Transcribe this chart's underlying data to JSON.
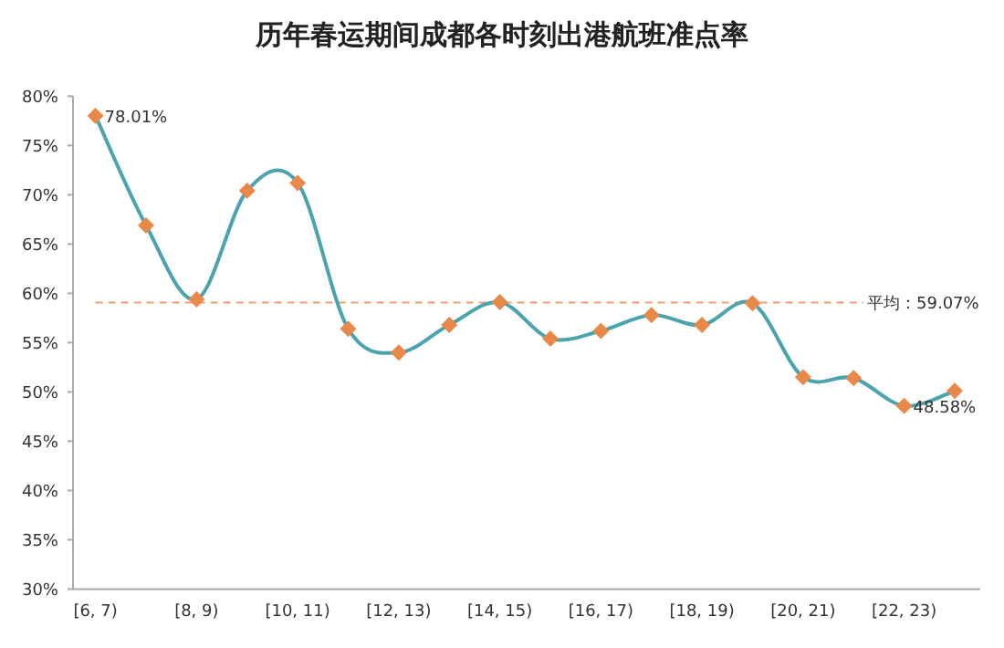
{
  "chart_data": {
    "type": "line",
    "title": "历年春运期间成都各时刻出港航班准点率",
    "categories": [
      "[6, 7)",
      null,
      "[8, 9)",
      null,
      "[10, 11)",
      null,
      "[12, 13)",
      null,
      "[14, 15)",
      null,
      "[16, 17)",
      null,
      "[18, 19)",
      null,
      "[20, 21)",
      null,
      "[22, 23)",
      null
    ],
    "series": [
      {
        "color": "#4aa3ad",
        "values": [
          78.01,
          66.9,
          59.4,
          70.4,
          71.2,
          56.4,
          54.0,
          56.8,
          59.1,
          55.4,
          56.2,
          57.8,
          56.8,
          59.0,
          51.5,
          51.4,
          48.58,
          50.1
        ],
        "value_labels": [
          "78.01%",
          null,
          null,
          null,
          null,
          null,
          null,
          null,
          null,
          null,
          null,
          null,
          null,
          null,
          null,
          null,
          "48.58%",
          null
        ]
      }
    ],
    "marker": "diamond",
    "line_style": "solid",
    "grid": false,
    "ylim": [
      30,
      80
    ],
    "yticks": [
      {
        "value": 30,
        "label": "30%"
      },
      {
        "value": 35,
        "label": "35%"
      },
      {
        "value": 40,
        "label": "40%"
      },
      {
        "value": 45,
        "label": "45%"
      },
      {
        "value": 50,
        "label": "50%"
      },
      {
        "value": 55,
        "label": "55%"
      },
      {
        "value": 60,
        "label": "60%"
      },
      {
        "value": 65,
        "label": "65%"
      },
      {
        "value": 70,
        "label": "70%"
      },
      {
        "value": 75,
        "label": "75%"
      },
      {
        "value": 80,
        "label": "80%"
      }
    ],
    "ref_lines": [
      {
        "axis": "y",
        "value": 59.07,
        "label": "平均：59.07%",
        "color": "#f0a070",
        "line_style": "dashed"
      }
    ]
  }
}
